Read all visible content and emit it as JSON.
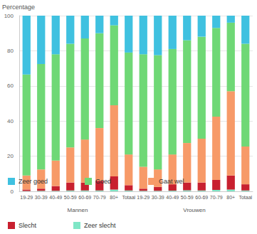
{
  "chart_data": {
    "type": "bar",
    "stacked": true,
    "grid": true,
    "legend": "bottom",
    "y_label": "Percentage",
    "categories": [
      "19-29",
      "30-39",
      "40-49",
      "50-59",
      "60-69",
      "70-79",
      "80+",
      "Totaal",
      "19-29",
      "30-39",
      "40-49",
      "50-59",
      "60-69",
      "70-79",
      "80+",
      "Totaal"
    ],
    "group_labels": [
      "Mannen",
      "Vrouwen"
    ],
    "ylim": [
      0,
      100
    ],
    "yticks": [
      0,
      20,
      40,
      60,
      80,
      100
    ],
    "series": [
      {
        "name": "Zeer slecht",
        "color": "#7fe6c6",
        "values": [
          0.2,
          0.3,
          0.3,
          0.5,
          0.5,
          0.5,
          1,
          0.5,
          0.3,
          0.3,
          0.4,
          0.6,
          0.5,
          0.8,
          1,
          0.5
        ]
      },
      {
        "name": "Slecht",
        "color": "#c8202f",
        "values": [
          0.8,
          1.2,
          2.7,
          4.5,
          4.5,
          5.5,
          7.5,
          3,
          1.2,
          2.2,
          3.6,
          4.4,
          4.5,
          5.7,
          8,
          3.5
        ]
      },
      {
        "name": "Gaat wel",
        "color": "#f79a68",
        "values": [
          8,
          11,
          14.5,
          20,
          24.5,
          30,
          40.5,
          17.5,
          12.5,
          10,
          17,
          22.5,
          25,
          36,
          48,
          21.5
        ]
      },
      {
        "name": "Goed",
        "color": "#6fd876",
        "values": [
          57.5,
          60,
          60.5,
          59,
          57.5,
          54,
          45.5,
          58,
          64,
          65,
          60,
          58.5,
          58,
          50.5,
          39,
          58.5
        ]
      },
      {
        "name": "Zeer goed",
        "color": "#3fc1e0",
        "values": [
          33.5,
          27.5,
          22,
          16,
          13,
          10,
          5.5,
          21,
          22,
          22.5,
          19,
          14,
          12,
          7,
          4,
          16
        ]
      }
    ]
  }
}
